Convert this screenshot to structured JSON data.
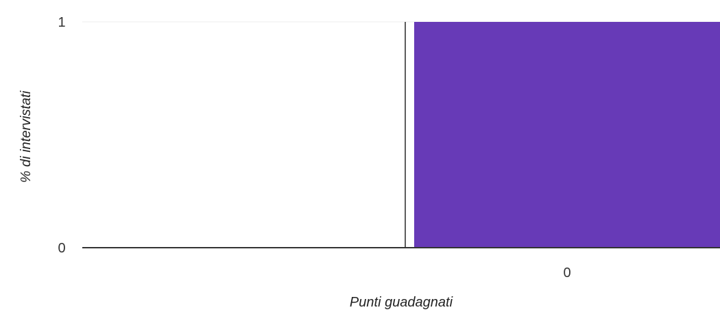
{
  "chart_data": {
    "type": "bar",
    "title": "",
    "xlabel": "Punti guadagnati",
    "ylabel": "% di intervistati",
    "categories": [
      "0"
    ],
    "values": [
      1
    ],
    "ylim": [
      0,
      1
    ],
    "y_ticks": [
      "0",
      "1"
    ],
    "grid": true,
    "legend": "none",
    "colors": {
      "bar": "#673ab7",
      "axis": "#333333",
      "grid": "#eeeeee"
    }
  }
}
